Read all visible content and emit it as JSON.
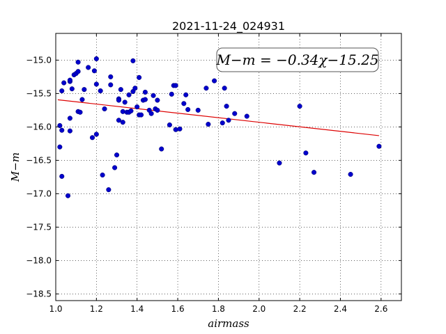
{
  "chart_data": {
    "type": "scatter",
    "title": "2021-11-24_024931",
    "xlabel": "airmass",
    "ylabel": "M−m",
    "xlim": [
      1.0,
      2.7
    ],
    "ylim": [
      -18.6,
      -14.6
    ],
    "y_inverted": true,
    "grid": true,
    "x_ticks": [
      1.0,
      1.2,
      1.4,
      1.6,
      1.8,
      2.0,
      2.2,
      2.4,
      2.6
    ],
    "x_tick_labels": [
      "1.0",
      "1.2",
      "1.4",
      "1.6",
      "1.8",
      "2.0",
      "2.2",
      "2.4",
      "2.6"
    ],
    "y_ticks": [
      -15.0,
      -15.5,
      -16.0,
      -16.5,
      -17.0,
      -17.5,
      -18.0,
      -18.5
    ],
    "y_tick_labels": [
      "−15.0",
      "−15.5",
      "−16.0",
      "−16.5",
      "−17.0",
      "−17.5",
      "−18.0",
      "−18.5"
    ],
    "annotation": "M−m = −0.34χ−15.25",
    "point_color": "#0000cc",
    "fit_color": "#dd0000",
    "fit": {
      "slope": -0.34,
      "intercept": -15.25,
      "x_range": [
        1.01,
        2.59
      ]
    },
    "points": [
      [
        1.02,
        -15.98
      ],
      [
        1.02,
        -16.3
      ],
      [
        1.03,
        -16.05
      ],
      [
        1.03,
        -16.74
      ],
      [
        1.03,
        -15.46
      ],
      [
        1.04,
        -15.34
      ],
      [
        1.06,
        -17.03
      ],
      [
        1.07,
        -15.87
      ],
      [
        1.07,
        -16.06
      ],
      [
        1.07,
        -15.32
      ],
      [
        1.07,
        -15.3
      ],
      [
        1.08,
        -15.43
      ],
      [
        1.09,
        -15.22
      ],
      [
        1.1,
        -15.2
      ],
      [
        1.11,
        -15.03
      ],
      [
        1.11,
        -15.17
      ],
      [
        1.11,
        -15.77
      ],
      [
        1.12,
        -15.78
      ],
      [
        1.13,
        -15.59
      ],
      [
        1.14,
        -15.44
      ],
      [
        1.16,
        -15.11
      ],
      [
        1.18,
        -16.16
      ],
      [
        1.19,
        -15.16
      ],
      [
        1.2,
        -14.98
      ],
      [
        1.2,
        -16.11
      ],
      [
        1.2,
        -15.36
      ],
      [
        1.22,
        -15.46
      ],
      [
        1.23,
        -16.72
      ],
      [
        1.24,
        -15.73
      ],
      [
        1.26,
        -16.94
      ],
      [
        1.27,
        -15.25
      ],
      [
        1.27,
        -15.37
      ],
      [
        1.29,
        -16.61
      ],
      [
        1.3,
        -16.42
      ],
      [
        1.31,
        -15.58
      ],
      [
        1.31,
        -15.9
      ],
      [
        1.31,
        -15.6
      ],
      [
        1.32,
        -15.44
      ],
      [
        1.33,
        -15.77
      ],
      [
        1.33,
        -15.93
      ],
      [
        1.34,
        -15.63
      ],
      [
        1.35,
        -15.78
      ],
      [
        1.36,
        -15.78
      ],
      [
        1.36,
        -15.52
      ],
      [
        1.37,
        -15.76
      ],
      [
        1.38,
        -15.01
      ],
      [
        1.38,
        -15.47
      ],
      [
        1.39,
        -15.42
      ],
      [
        1.4,
        -15.7
      ],
      [
        1.41,
        -15.26
      ],
      [
        1.41,
        -15.82
      ],
      [
        1.42,
        -15.82
      ],
      [
        1.43,
        -15.6
      ],
      [
        1.44,
        -15.59
      ],
      [
        1.44,
        -15.48
      ],
      [
        1.46,
        -15.75
      ],
      [
        1.47,
        -15.8
      ],
      [
        1.48,
        -15.53
      ],
      [
        1.49,
        -15.73
      ],
      [
        1.5,
        -15.6
      ],
      [
        1.5,
        -15.75
      ],
      [
        1.52,
        -16.33
      ],
      [
        1.56,
        -15.97
      ],
      [
        1.57,
        -15.51
      ],
      [
        1.58,
        -15.38
      ],
      [
        1.59,
        -16.04
      ],
      [
        1.59,
        -15.38
      ],
      [
        1.61,
        -16.03
      ],
      [
        1.63,
        -15.65
      ],
      [
        1.64,
        -15.52
      ],
      [
        1.65,
        -15.74
      ],
      [
        1.7,
        -15.75
      ],
      [
        1.74,
        -15.42
      ],
      [
        1.75,
        -15.96
      ],
      [
        1.78,
        -15.31
      ],
      [
        1.82,
        -15.94
      ],
      [
        1.83,
        -15.42
      ],
      [
        1.84,
        -15.69
      ],
      [
        1.85,
        -15.9
      ],
      [
        1.88,
        -15.8
      ],
      [
        1.94,
        -15.84
      ],
      [
        2.1,
        -16.54
      ],
      [
        2.2,
        -15.69
      ],
      [
        2.23,
        -16.39
      ],
      [
        2.27,
        -16.68
      ],
      [
        2.45,
        -16.71
      ],
      [
        2.59,
        -16.29
      ]
    ]
  }
}
